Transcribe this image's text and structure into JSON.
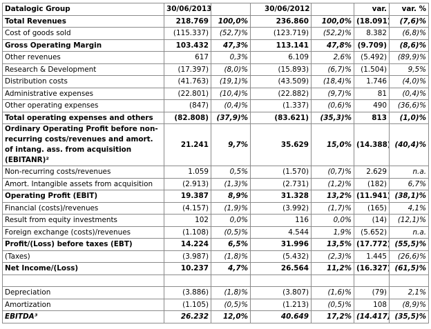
{
  "table": {
    "header": {
      "title": "Datalogic Group",
      "col_2013": "30/06/2013",
      "col_2012": "30/06/2012",
      "var": "var.",
      "var_pct": "var. %"
    },
    "rows": [
      {
        "label": "Total Revenues",
        "bold": true,
        "cells": [
          "218.769",
          "100,0%",
          "236.860",
          "100,0%",
          "(18.091)",
          "(7,6)%"
        ]
      },
      {
        "label": "Cost of goods sold",
        "cells": [
          "(115.337)",
          "(52,7)%",
          "(123.719)",
          "(52,2)%",
          "8.382",
          "(6,8)%"
        ]
      },
      {
        "label": "Gross Operating Margin",
        "bold": true,
        "cells": [
          "103.432",
          "47,3%",
          "113.141",
          "47,8%",
          "(9.709)",
          "(8,6)%"
        ]
      },
      {
        "label": "Other revenues",
        "cells": [
          "617",
          "0,3%",
          "6.109",
          "2,6%",
          "(5.492)",
          "(89,9)%"
        ]
      },
      {
        "label": "Research & Development",
        "cells": [
          "(17.397)",
          "(8,0)%",
          "(15.893)",
          "(6,7)%",
          "(1.504)",
          "9,5%"
        ]
      },
      {
        "label": "Distribution costs",
        "cells": [
          "(41.763)",
          "(19,1)%",
          "(43.509)",
          "(18,4)%",
          "1.746",
          "(4,0)%"
        ]
      },
      {
        "label": "Administrative expenses",
        "cells": [
          "(22.801)",
          "(10,4)%",
          "(22.882)",
          "(9,7)%",
          "81",
          "(0,4)%"
        ]
      },
      {
        "label": "Other operating expenses",
        "cells": [
          "(847)",
          "(0,4)%",
          "(1.337)",
          "(0,6)%",
          "490",
          "(36,6)%"
        ]
      },
      {
        "label": "Total operating expenses and others",
        "bold": true,
        "cells": [
          "(82.808)",
          "(37,9)%",
          "(83.621)",
          "(35,3)%",
          "813",
          "(1,0)%"
        ]
      },
      {
        "label": "Ordinary Operating Profit before non-recurring costs/revenues and amort. of intang. ass. from acquisition (EBITANR)²",
        "bold": true,
        "cells": [
          "21.241",
          "9,7%",
          "35.629",
          "15,0%",
          "(14.388)",
          "(40,4)%"
        ]
      },
      {
        "label": "Non-recurring costs/revenues",
        "cells": [
          "1.059",
          "0,5%",
          "(1.570)",
          "(0,7)%",
          "2.629",
          "n.a."
        ]
      },
      {
        "label": "Amort. Intangible assets from acquisition",
        "cells": [
          "(2.913)",
          "(1,3)%",
          "(2.731)",
          "(1,2)%",
          "(182)",
          "6,7%"
        ]
      },
      {
        "label": "Operating Profit (EBIT)",
        "bold": true,
        "cells": [
          "19.387",
          "8,9%",
          "31.328",
          "13,2%",
          "(11.941)",
          "(38,1)%"
        ]
      },
      {
        "label": "Financial (costs)/revenues",
        "cells": [
          "(4.157)",
          "(1,9)%",
          "(3.992)",
          "(1,7)%",
          "(165)",
          "4,1%"
        ]
      },
      {
        "label": "Result from equity investments",
        "cells": [
          "102",
          "0,0%",
          "116",
          "0,0%",
          "(14)",
          "(12,1)%"
        ]
      },
      {
        "label": "Foreign exchange (costs)/revenues",
        "cells": [
          "(1.108)",
          "(0,5)%",
          "4.544",
          "1,9%",
          "(5.652)",
          "n.a."
        ]
      },
      {
        "label": "Profit/(Loss) before taxes (EBT)",
        "bold": true,
        "cells": [
          "14.224",
          "6,5%",
          "31.996",
          "13,5%",
          "(17.772)",
          "(55,5)%"
        ]
      },
      {
        "label": "(Taxes)",
        "cells": [
          "(3.987)",
          "(1,8)%",
          "(5.432)",
          "(2,3)%",
          "1.445",
          "(26,6)%"
        ]
      },
      {
        "label": "Net Income/(Loss)",
        "bold": true,
        "cells": [
          "10.237",
          "4,7%",
          "26.564",
          "11,2%",
          "(16.327)",
          "(61,5)%"
        ]
      },
      {
        "label": "Depreciation",
        "cells": [
          "(3.886)",
          "(1,8)%",
          "(3.807)",
          "(1,6)%",
          "(79)",
          "2,1%"
        ]
      },
      {
        "label": "Amortization",
        "cells": [
          "(1.105)",
          "(0,5)%",
          "(1.213)",
          "(0,5)%",
          "108",
          "(8,9)%"
        ]
      },
      {
        "label": "EBITDA³",
        "bold": true,
        "italic": true,
        "cells": [
          "26.232",
          "12,0%",
          "40.649",
          "17,2%",
          "(14.417)",
          "(35,5)%"
        ]
      }
    ]
  }
}
